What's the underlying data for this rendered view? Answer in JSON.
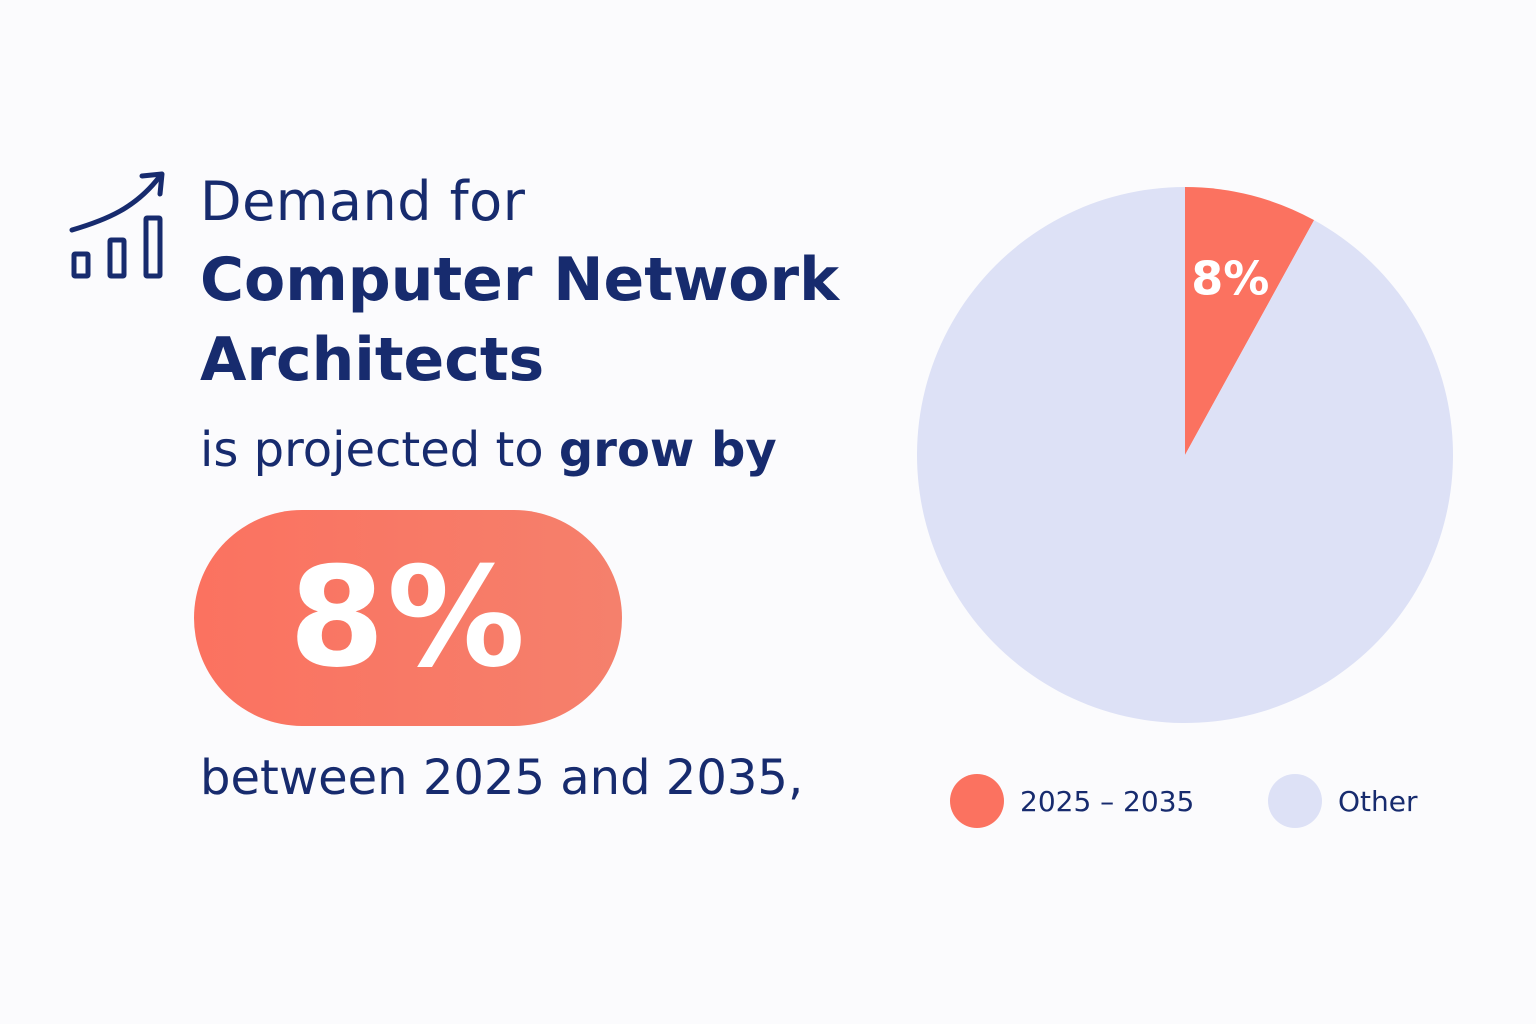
{
  "header": {
    "line1": "Demand for",
    "line2": "Computer Network Architects"
  },
  "lead": {
    "text": "is projected to ",
    "strong": "grow by"
  },
  "highlight": {
    "value": "8%"
  },
  "period_text": "between 2025 and 2035,",
  "icon": "trending-chart-icon",
  "colors": {
    "primary_text": "#172b6e",
    "accent": "#fb7260",
    "other": "#dde1f6"
  },
  "chart_data": {
    "type": "pie",
    "slices": [
      {
        "label": "2025 – 2035",
        "value": 8,
        "display": "8%",
        "color": "#fb7260"
      },
      {
        "label": "Other",
        "value": 92,
        "display": "",
        "color": "#dde1f6"
      }
    ],
    "legend_position": "bottom"
  }
}
